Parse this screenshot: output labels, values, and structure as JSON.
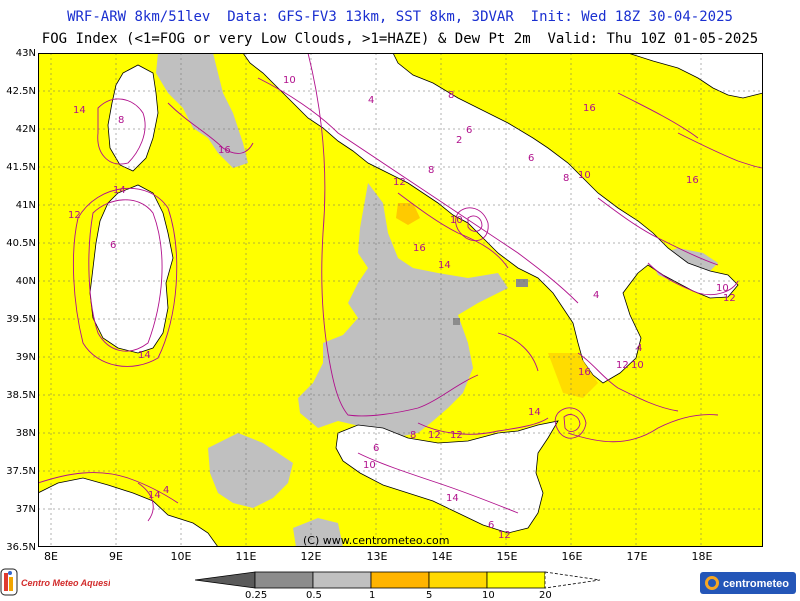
{
  "header": {
    "line1": "WRF-ARW 8km/51lev  Data: GFS-FV3 13km, SST 8km, 3DVAR  Init: Wed 18Z 30-04-2025",
    "line2": "FOG Index (<1=FOG or very Low Clouds, >1=HAZE) & Dew Pt 2m  Valid: Thu 10Z 01-05-2025"
  },
  "axes": {
    "lat_labels": [
      "43N",
      "42.5N",
      "42N",
      "41.5N",
      "41N",
      "40.5N",
      "40N",
      "39.5N",
      "39N",
      "38.5N",
      "38N",
      "37.5N",
      "37N",
      "36.5N"
    ],
    "lon_labels": [
      "8E",
      "9E",
      "10E",
      "11E",
      "12E",
      "13E",
      "14E",
      "15E",
      "16E",
      "17E",
      "18E"
    ]
  },
  "credit": "(C) www.centrometeo.com",
  "legend": {
    "labels": [
      "0.25",
      "0.5",
      "1",
      "5",
      "10",
      "20"
    ],
    "colors": [
      "#5a5a5a",
      "#8c8c8c",
      "#c0c0c0",
      "#ffb400",
      "#ffd800",
      "#ffff00"
    ]
  },
  "logos": {
    "left_text": "Centro Meteo Aquesio",
    "right_text": "centrometeo"
  },
  "contour_labels": [
    "14",
    "8",
    "12",
    "14",
    "6",
    "16",
    "10",
    "4",
    "8",
    "6",
    "2",
    "8",
    "12",
    "10",
    "16",
    "16",
    "6",
    "8",
    "10",
    "16",
    "12",
    "14",
    "10",
    "14",
    "16",
    "4",
    "12",
    "10",
    "4",
    "6",
    "8",
    "12",
    "14",
    "12",
    "10",
    "14",
    "6",
    "14",
    "12",
    "4"
  ]
}
